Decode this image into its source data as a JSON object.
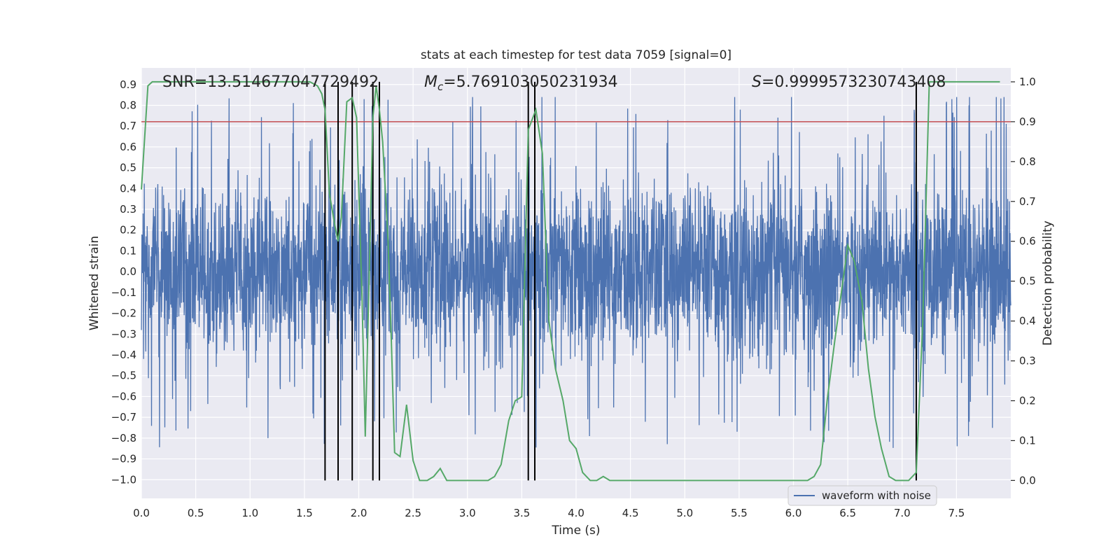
{
  "chart_data": {
    "type": "line",
    "title": "stats at each timestep for test data 7059 [signal=0]",
    "xlabel": "Time (s)",
    "ylabel_left": "Whitened strain",
    "ylabel_right": "Detection probability",
    "xlim": [
      0.0,
      8.0
    ],
    "ylim_left": [
      -1.09,
      0.98
    ],
    "ylim_right": [
      -0.045,
      1.035
    ],
    "x_ticks": [
      "0.0",
      "0.5",
      "1.0",
      "1.5",
      "2.0",
      "2.5",
      "3.0",
      "3.5",
      "4.0",
      "4.5",
      "5.0",
      "5.5",
      "6.0",
      "6.5",
      "7.0",
      "7.5"
    ],
    "x_tick_values": [
      0.0,
      0.5,
      1.0,
      1.5,
      2.0,
      2.5,
      3.0,
      3.5,
      4.0,
      4.5,
      5.0,
      5.5,
      6.0,
      6.5,
      7.0,
      7.5
    ],
    "y_left_ticks": [
      "0.9",
      "0.8",
      "0.7",
      "0.6",
      "0.5",
      "0.4",
      "0.3",
      "0.2",
      "0.1",
      "0.0",
      "−0.1",
      "−0.2",
      "−0.3",
      "−0.4",
      "−0.5",
      "−0.6",
      "−0.7",
      "−0.8",
      "−0.9",
      "−1.0"
    ],
    "y_left_tick_values": [
      0.9,
      0.8,
      0.7,
      0.6,
      0.5,
      0.4,
      0.3,
      0.2,
      0.1,
      0.0,
      -0.1,
      -0.2,
      -0.3,
      -0.4,
      -0.5,
      -0.6,
      -0.7,
      -0.8,
      -0.9,
      -1.0
    ],
    "y_right_ticks": [
      "1.0",
      "0.9",
      "0.8",
      "0.7",
      "0.6",
      "0.5",
      "0.4",
      "0.3",
      "0.2",
      "0.1",
      "0.0"
    ],
    "y_right_tick_values": [
      1.0,
      0.9,
      0.8,
      0.7,
      0.6,
      0.5,
      0.4,
      0.3,
      0.2,
      0.1,
      0.0
    ],
    "threshold": 0.9,
    "vertical_lines": [
      1.69,
      1.81,
      1.94,
      2.13,
      2.19,
      3.56,
      3.62,
      7.13
    ],
    "annotations": {
      "snr": "SNR=13.514677047729492",
      "mc_symbol": "M",
      "mc_sub": "c",
      "mc_value": "=5.769103050231934",
      "s_symbol": "S",
      "s_value": "=0.9999573230743408"
    },
    "series": [
      {
        "name": "waveform with noise",
        "axis": "left",
        "kind": "noise",
        "duration": 8.0,
        "typical_amplitude": 0.5,
        "peak_max": 0.84,
        "peak_min": -1.0
      },
      {
        "axis": "right",
        "x": [
          0.0,
          0.06,
          0.1,
          0.2,
          0.4,
          0.6,
          0.8,
          1.0,
          1.2,
          1.4,
          1.55,
          1.62,
          1.66,
          1.69,
          1.73,
          1.78,
          1.81,
          1.84,
          1.89,
          1.94,
          1.98,
          2.03,
          2.06,
          2.1,
          2.13,
          2.16,
          2.19,
          2.22,
          2.27,
          2.3,
          2.33,
          2.38,
          2.44,
          2.5,
          2.56,
          2.63,
          2.69,
          2.75,
          2.81,
          2.88,
          2.94,
          3.0,
          3.06,
          3.13,
          3.19,
          3.25,
          3.31,
          3.38,
          3.44,
          3.5,
          3.56,
          3.63,
          3.69,
          3.75,
          3.81,
          3.88,
          3.94,
          4.0,
          4.06,
          4.13,
          4.19,
          4.25,
          4.31,
          4.38,
          4.5,
          4.75,
          5.0,
          5.25,
          5.5,
          5.75,
          6.0,
          6.06,
          6.13,
          6.19,
          6.25,
          6.31,
          6.38,
          6.44,
          6.5,
          6.56,
          6.63,
          6.69,
          6.75,
          6.81,
          6.88,
          6.94,
          7.0,
          7.06,
          7.13,
          7.19,
          7.25,
          7.5,
          7.9
        ],
        "y": [
          0.73,
          0.99,
          1.0,
          1.0,
          1.0,
          1.0,
          1.0,
          1.0,
          1.0,
          1.0,
          1.0,
          0.99,
          0.97,
          0.93,
          0.72,
          0.64,
          0.6,
          0.66,
          0.95,
          0.96,
          0.91,
          0.46,
          0.11,
          0.56,
          0.91,
          0.99,
          0.93,
          0.85,
          0.6,
          0.35,
          0.07,
          0.06,
          0.19,
          0.05,
          0.0,
          0.0,
          0.01,
          0.03,
          0.0,
          0.0,
          0.0,
          0.0,
          0.0,
          0.0,
          0.0,
          0.01,
          0.04,
          0.15,
          0.2,
          0.21,
          0.88,
          0.93,
          0.82,
          0.4,
          0.28,
          0.2,
          0.1,
          0.08,
          0.02,
          0.0,
          0.0,
          0.01,
          0.0,
          0.0,
          0.0,
          0.0,
          0.0,
          0.0,
          0.0,
          0.0,
          0.0,
          0.0,
          0.0,
          0.01,
          0.04,
          0.2,
          0.35,
          0.47,
          0.59,
          0.55,
          0.45,
          0.28,
          0.16,
          0.08,
          0.01,
          0.0,
          0.0,
          0.0,
          0.02,
          0.4,
          1.0,
          1.0,
          1.0
        ]
      }
    ]
  },
  "colors": {
    "plot_bg": "#eaeaf2",
    "grid": "#ffffff",
    "noise": "#4c72b0",
    "probability": "#55a868",
    "threshold": "#c44e52",
    "vlines": "#000000"
  }
}
